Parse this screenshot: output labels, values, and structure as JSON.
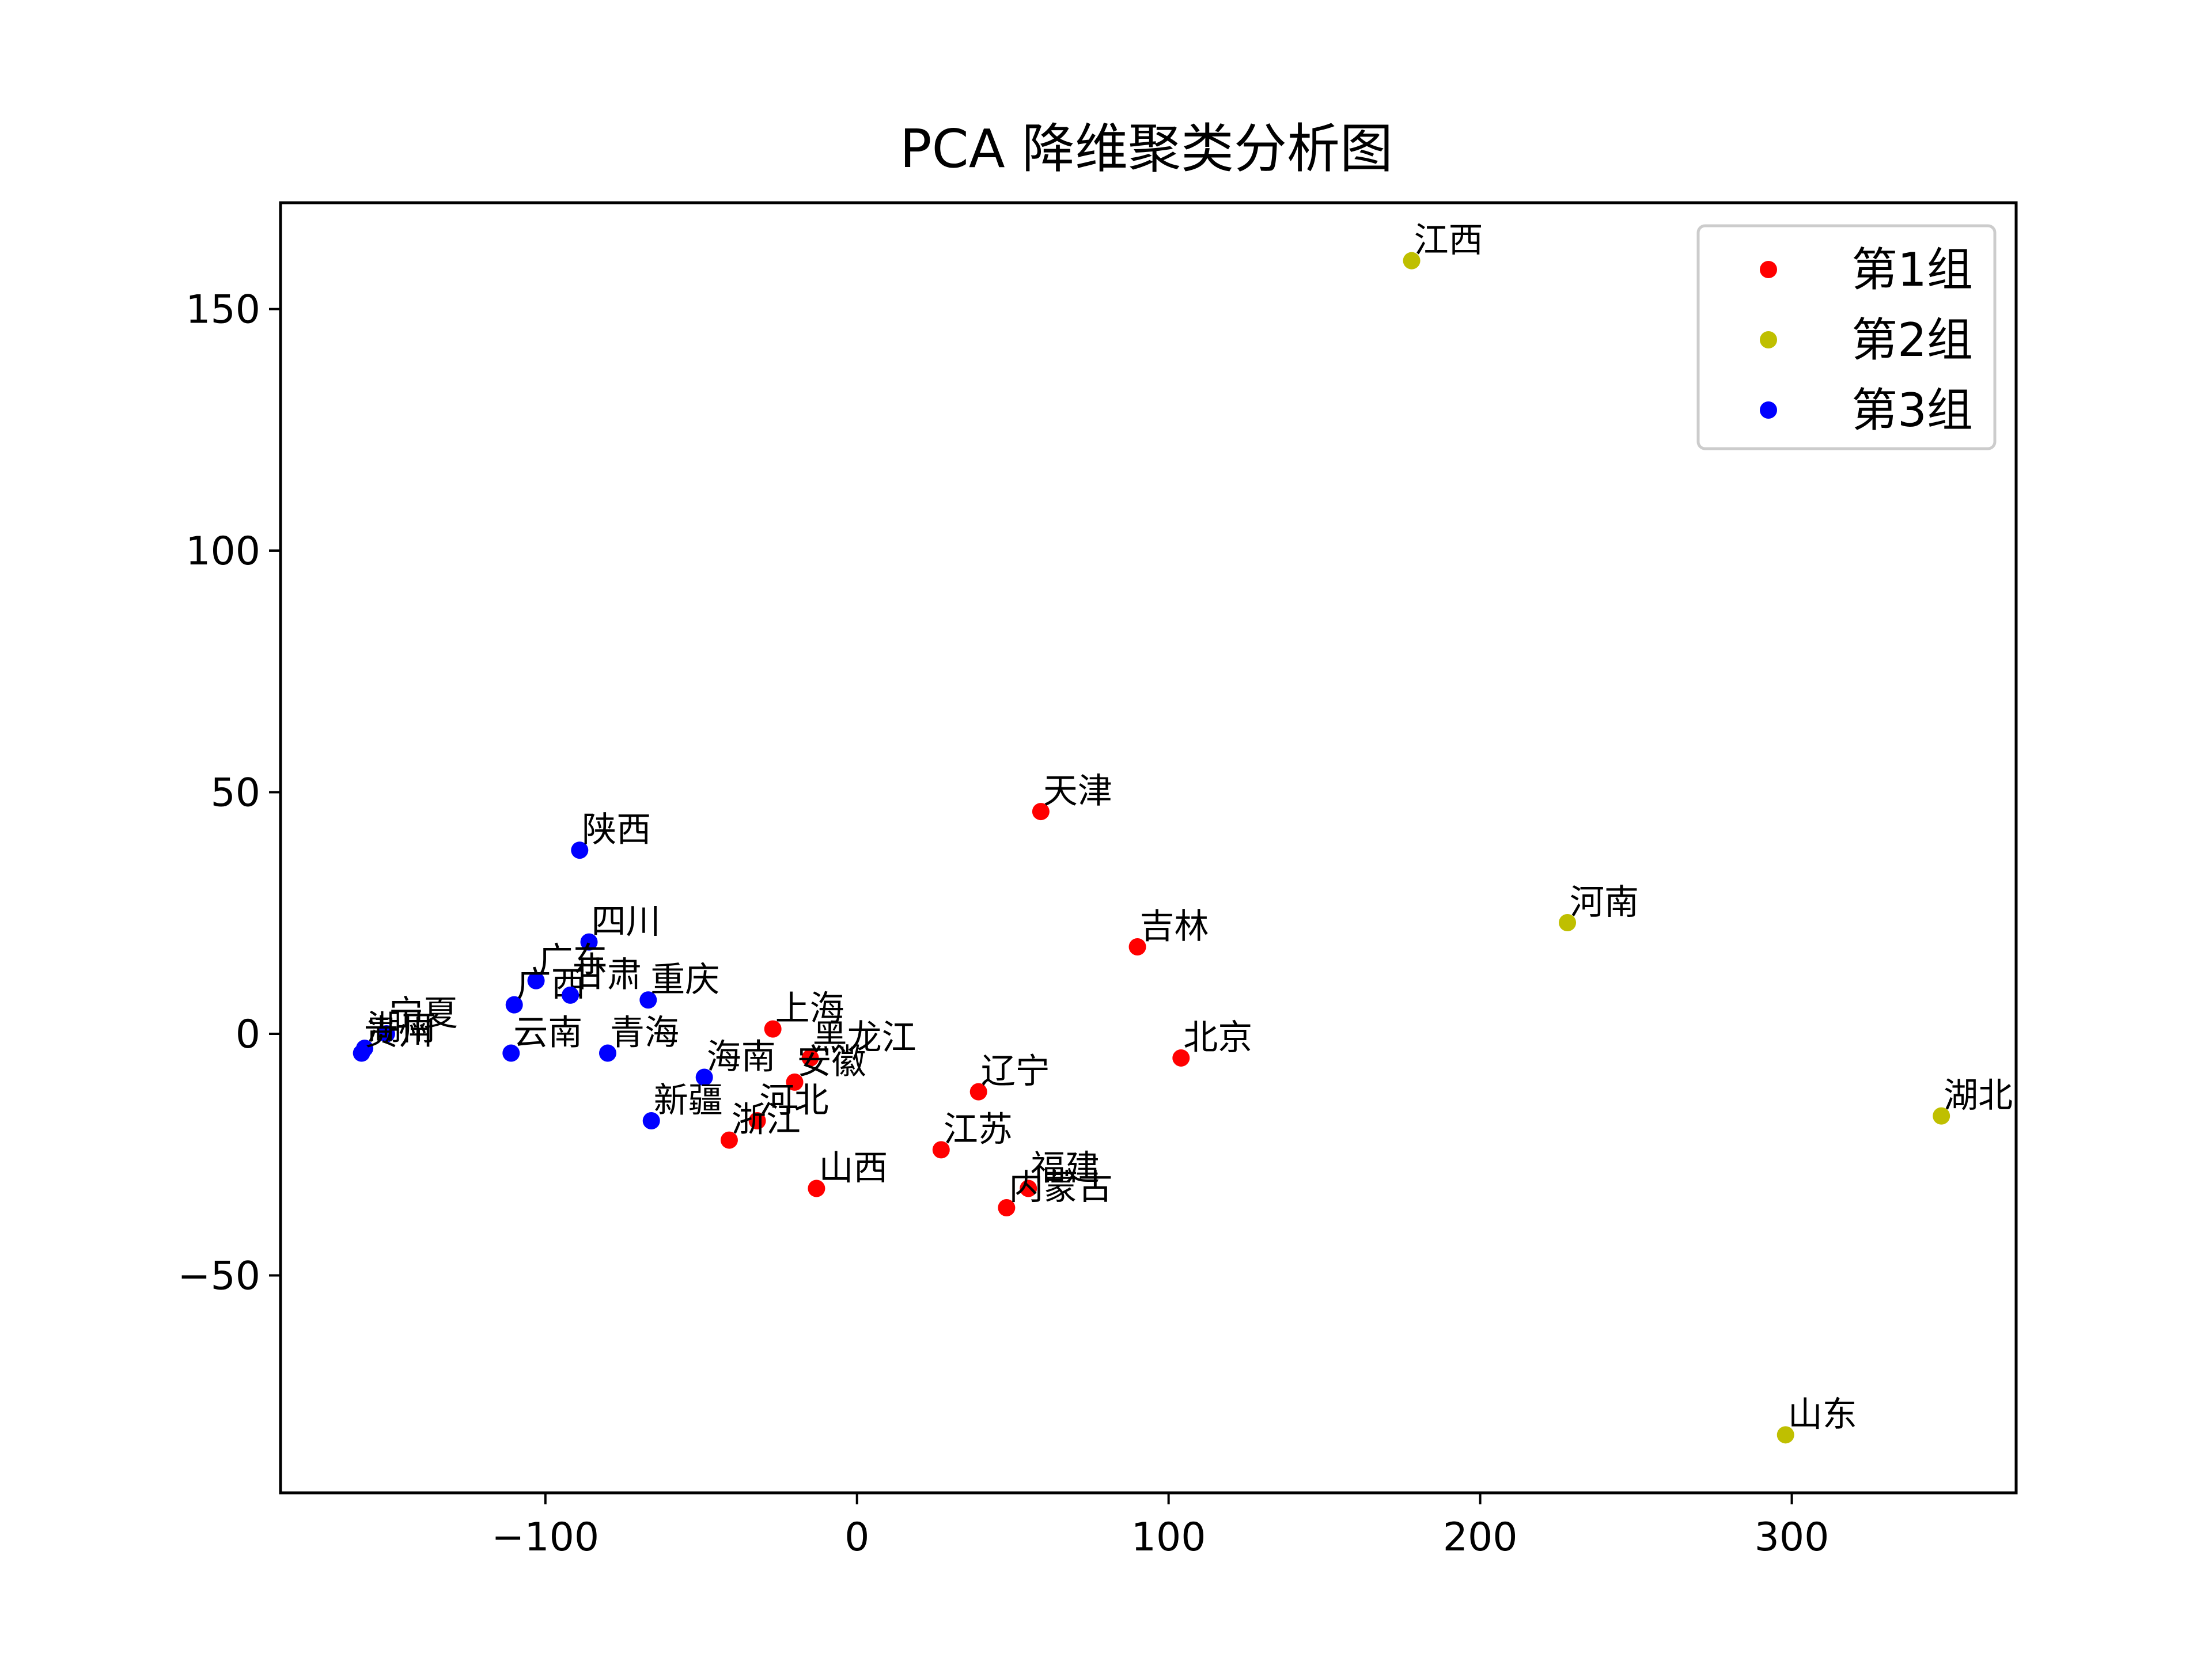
{
  "chart_data": {
    "type": "scatter",
    "title": "PCA 降维聚类分析图",
    "xlabel": "",
    "ylabel": "",
    "xlim": [
      -185,
      372
    ],
    "ylim": [
      -95,
      172
    ],
    "xticks": [
      -100,
      0,
      100,
      200,
      300
    ],
    "xtick_labels": [
      "−100",
      "0",
      "100",
      "200",
      "300"
    ],
    "yticks": [
      -50,
      0,
      50,
      100,
      150
    ],
    "ytick_labels": [
      "−50",
      "0",
      "50",
      "100",
      "150"
    ],
    "grid": false,
    "legend_position": "top-right",
    "series": [
      {
        "name": "第1组",
        "color": "#ff0000",
        "points": [
          {
            "label": "天津",
            "x": 59,
            "y": 46
          },
          {
            "label": "吉林",
            "x": 90,
            "y": 18
          },
          {
            "label": "北京",
            "x": 104,
            "y": -5
          },
          {
            "label": "上海",
            "x": -27,
            "y": 1
          },
          {
            "label": "黑龙江",
            "x": -15,
            "y": -5
          },
          {
            "label": "安徽",
            "x": -20,
            "y": -10
          },
          {
            "label": "河北",
            "x": -32,
            "y": -18
          },
          {
            "label": "浙江",
            "x": -41,
            "y": -22
          },
          {
            "label": "辽宁",
            "x": 39,
            "y": -12
          },
          {
            "label": "江苏",
            "x": 27,
            "y": -24
          },
          {
            "label": "山西",
            "x": -13,
            "y": -32
          },
          {
            "label": "福建",
            "x": 55,
            "y": -32
          },
          {
            "label": "内蒙古",
            "x": 48,
            "y": -36
          }
        ]
      },
      {
        "name": "第2组",
        "color": "#bfbf00",
        "points": [
          {
            "label": "江西",
            "x": 178,
            "y": 160
          },
          {
            "label": "河南",
            "x": 228,
            "y": 23
          },
          {
            "label": "湖北",
            "x": 348,
            "y": -17
          },
          {
            "label": "山东",
            "x": 298,
            "y": -83
          }
        ]
      },
      {
        "name": "第3组",
        "color": "#0000ff",
        "points": [
          {
            "label": "陕西",
            "x": -89,
            "y": 38
          },
          {
            "label": "四川",
            "x": -86,
            "y": 19
          },
          {
            "label": "广东",
            "x": -103,
            "y": 11
          },
          {
            "label": "广西",
            "x": -110,
            "y": 6
          },
          {
            "label": "甘肃",
            "x": -92,
            "y": 8
          },
          {
            "label": "重庆",
            "x": -67,
            "y": 7
          },
          {
            "label": "宁夏",
            "x": -151,
            "y": 0
          },
          {
            "label": "湖南",
            "x": -158,
            "y": -3
          },
          {
            "label": "贵州",
            "x": -159,
            "y": -4
          },
          {
            "label": "云南",
            "x": -111,
            "y": -4
          },
          {
            "label": "青海",
            "x": -80,
            "y": -4
          },
          {
            "label": "海南",
            "x": -49,
            "y": -9
          },
          {
            "label": "新疆",
            "x": -66,
            "y": -18
          }
        ]
      }
    ]
  }
}
